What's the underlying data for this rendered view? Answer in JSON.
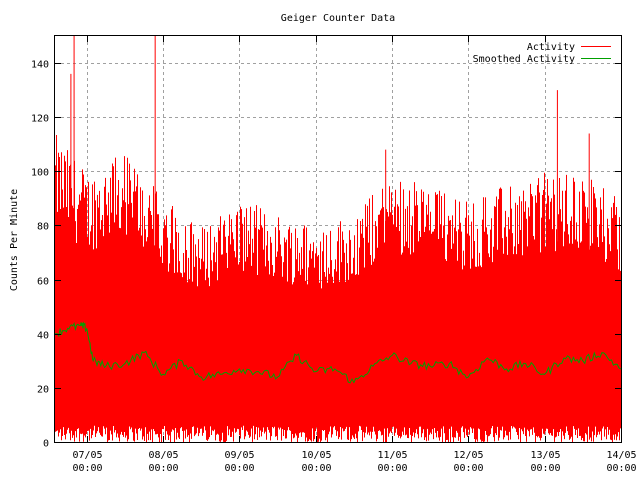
{
  "chart_data": {
    "type": "line",
    "title": "Geiger Counter Data",
    "xlabel": "",
    "ylabel": "Counts Per Minute",
    "ylim": [
      0,
      150
    ],
    "y_ticks": [
      0,
      20,
      40,
      60,
      80,
      100,
      120,
      140
    ],
    "x_ticks": [
      {
        "date": "07/05",
        "time": "00:00"
      },
      {
        "date": "08/05",
        "time": "00:00"
      },
      {
        "date": "09/05",
        "time": "00:00"
      },
      {
        "date": "10/05",
        "time": "00:00"
      },
      {
        "date": "11/05",
        "time": "00:00"
      },
      {
        "date": "12/05",
        "time": "00:00"
      },
      {
        "date": "13/05",
        "time": "00:00"
      },
      {
        "date": "14/05",
        "time": "00:00"
      }
    ],
    "xlim": [
      "06/05 14:00",
      "14/05 00:00"
    ],
    "grid": true,
    "legend_position": "top-right",
    "series": [
      {
        "name": "Activity",
        "color": "#ff0000",
        "style": "dense-noisy",
        "typical_range": [
          0,
          80
        ],
        "peaks": [
          {
            "x": "06/05 20:00",
            "y": 150
          },
          {
            "x": "06/05 19:00",
            "y": 136
          },
          {
            "x": "07/05 21:30",
            "y": 150
          },
          {
            "x": "10/05 22:00",
            "y": 108
          },
          {
            "x": "13/05 04:00",
            "y": 130
          },
          {
            "x": "13/05 14:00",
            "y": 114
          }
        ],
        "envelope": [
          {
            "x": "06/05 14:00",
            "low": 0,
            "high": 114
          },
          {
            "x": "07/05 00:00",
            "low": 0,
            "high": 100
          },
          {
            "x": "07/05 12:00",
            "low": 0,
            "high": 108
          },
          {
            "x": "08/05 00:00",
            "low": 0,
            "high": 90
          },
          {
            "x": "08/05 12:00",
            "low": 0,
            "high": 80
          },
          {
            "x": "09/05 00:00",
            "low": 0,
            "high": 90
          },
          {
            "x": "09/05 12:00",
            "low": 0,
            "high": 85
          },
          {
            "x": "10/05 00:00",
            "low": 0,
            "high": 80
          },
          {
            "x": "10/05 12:00",
            "low": 0,
            "high": 85
          },
          {
            "x": "11/05 00:00",
            "low": 0,
            "high": 100
          },
          {
            "x": "11/05 12:00",
            "low": 0,
            "high": 95
          },
          {
            "x": "12/05 00:00",
            "low": 0,
            "high": 90
          },
          {
            "x": "12/05 12:00",
            "low": 0,
            "high": 95
          },
          {
            "x": "13/05 00:00",
            "low": 0,
            "high": 100
          },
          {
            "x": "13/05 12:00",
            "low": 0,
            "high": 100
          },
          {
            "x": "14/05 00:00",
            "low": 0,
            "high": 90
          }
        ]
      },
      {
        "name": "Smoothed Activity",
        "color": "#00a000",
        "points": [
          {
            "x": "06/05 14:00",
            "y": 40
          },
          {
            "x": "06/05 18:00",
            "y": 42
          },
          {
            "x": "06/05 22:00",
            "y": 43
          },
          {
            "x": "07/05 00:00",
            "y": 42
          },
          {
            "x": "07/05 02:00",
            "y": 30
          },
          {
            "x": "07/05 06:00",
            "y": 28
          },
          {
            "x": "07/05 12:00",
            "y": 29
          },
          {
            "x": "07/05 18:00",
            "y": 33
          },
          {
            "x": "08/05 00:00",
            "y": 25
          },
          {
            "x": "08/05 06:00",
            "y": 30
          },
          {
            "x": "08/05 12:00",
            "y": 24
          },
          {
            "x": "08/05 18:00",
            "y": 25
          },
          {
            "x": "09/05 00:00",
            "y": 27
          },
          {
            "x": "09/05 06:00",
            "y": 26
          },
          {
            "x": "09/05 12:00",
            "y": 24
          },
          {
            "x": "09/05 18:00",
            "y": 32
          },
          {
            "x": "10/05 00:00",
            "y": 26
          },
          {
            "x": "10/05 06:00",
            "y": 27
          },
          {
            "x": "10/05 12:00",
            "y": 22
          },
          {
            "x": "10/05 18:00",
            "y": 28
          },
          {
            "x": "11/05 00:00",
            "y": 32
          },
          {
            "x": "11/05 06:00",
            "y": 29
          },
          {
            "x": "11/05 12:00",
            "y": 28
          },
          {
            "x": "11/05 18:00",
            "y": 29
          },
          {
            "x": "12/05 00:00",
            "y": 24
          },
          {
            "x": "12/05 06:00",
            "y": 31
          },
          {
            "x": "12/05 12:00",
            "y": 27
          },
          {
            "x": "12/05 18:00",
            "y": 29
          },
          {
            "x": "13/05 00:00",
            "y": 25
          },
          {
            "x": "13/05 06:00",
            "y": 31
          },
          {
            "x": "13/05 12:00",
            "y": 30
          },
          {
            "x": "13/05 18:00",
            "y": 33
          },
          {
            "x": "14/05 00:00",
            "y": 27
          }
        ]
      }
    ]
  }
}
